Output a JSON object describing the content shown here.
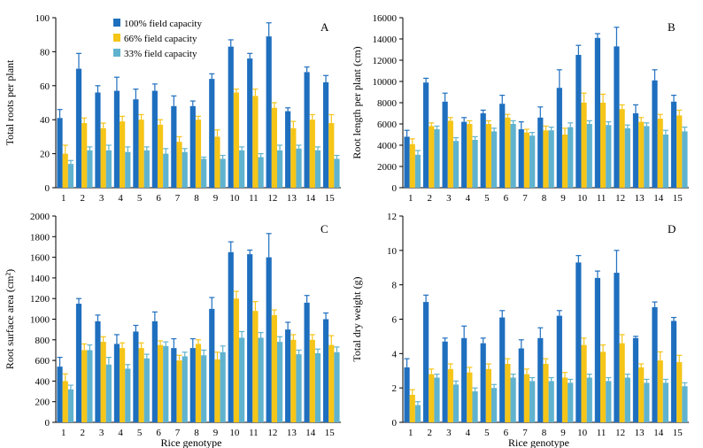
{
  "legend": {
    "placement": "top-left inside panel A",
    "entries": [
      {
        "label": "100% field capacity",
        "color": "#1f6fbf"
      },
      {
        "label": "66% field capacity",
        "color": "#f5c518"
      },
      {
        "label": "33% field capacity",
        "color": "#5fb3cf"
      }
    ]
  },
  "chart_data": [
    {
      "type": "bar",
      "panel_label": "A",
      "ylabel": "Total roots per plant",
      "xlabel": "",
      "categories": [
        "1",
        "2",
        "3",
        "4",
        "5",
        "6",
        "7",
        "8",
        "9",
        "10",
        "11",
        "12",
        "13",
        "14",
        "15"
      ],
      "ylim": [
        0,
        100
      ],
      "yticks": [
        0,
        20,
        40,
        60,
        80,
        100
      ],
      "series": [
        {
          "name": "100% field capacity",
          "color": "#1f6fbf",
          "values": [
            41,
            70,
            56,
            57,
            52,
            57,
            48,
            48,
            64,
            83,
            76,
            89,
            45,
            68,
            62
          ],
          "errors": [
            5,
            9,
            4,
            8,
            6,
            4,
            6,
            3,
            3,
            4,
            3,
            8,
            2,
            3,
            4
          ]
        },
        {
          "name": "66% field capacity",
          "color": "#f5c518",
          "values": [
            20,
            38,
            35,
            39,
            40,
            37,
            27,
            40,
            30,
            56,
            54,
            47,
            35,
            40,
            38
          ],
          "errors": [
            5,
            3,
            3,
            3,
            3,
            3,
            3,
            2,
            4,
            2,
            4,
            3,
            4,
            3,
            5
          ]
        },
        {
          "name": "33% field capacity",
          "color": "#5fb3cf",
          "values": [
            14,
            22,
            22,
            21,
            22,
            20,
            21,
            17,
            17,
            22,
            18,
            22,
            23,
            22,
            17
          ],
          "errors": [
            2,
            2,
            3,
            3,
            2,
            3,
            2,
            1,
            2,
            2,
            2,
            3,
            2,
            2,
            2
          ]
        }
      ]
    },
    {
      "type": "bar",
      "panel_label": "B",
      "ylabel": "Root length per plant (cm)",
      "xlabel": "",
      "categories": [
        "1",
        "2",
        "3",
        "4",
        "5",
        "6",
        "7",
        "8",
        "9",
        "10",
        "11",
        "12",
        "13",
        "14",
        "15"
      ],
      "ylim": [
        0,
        16000
      ],
      "yticks": [
        0,
        2000,
        4000,
        6000,
        8000,
        10000,
        12000,
        14000,
        16000
      ],
      "series": [
        {
          "name": "100% field capacity",
          "color": "#1f6fbf",
          "values": [
            4800,
            9900,
            8100,
            6200,
            7000,
            7900,
            5500,
            6600,
            9400,
            12500,
            14100,
            13300,
            7000,
            10100,
            8100
          ],
          "errors": [
            600,
            400,
            800,
            400,
            300,
            800,
            700,
            1000,
            1700,
            900,
            400,
            1800,
            800,
            1000,
            600
          ]
        },
        {
          "name": "66% field capacity",
          "color": "#f5c518",
          "values": [
            4100,
            5800,
            6300,
            6000,
            6000,
            6600,
            5200,
            5400,
            5000,
            8000,
            8000,
            7400,
            6200,
            6500,
            6800
          ],
          "errors": [
            500,
            300,
            300,
            300,
            300,
            300,
            300,
            400,
            600,
            900,
            800,
            400,
            400,
            400,
            500
          ]
        },
        {
          "name": "33% field capacity",
          "color": "#5fb3cf",
          "values": [
            3100,
            5500,
            4400,
            4500,
            5300,
            6000,
            4900,
            5400,
            5700,
            6000,
            5900,
            5600,
            5800,
            5000,
            5300
          ],
          "errors": [
            400,
            300,
            300,
            300,
            300,
            300,
            300,
            300,
            400,
            300,
            300,
            300,
            300,
            400,
            400
          ]
        }
      ]
    },
    {
      "type": "bar",
      "panel_label": "C",
      "ylabel": "Root surface area (cm²)",
      "xlabel": "Rice genotype",
      "categories": [
        "1",
        "2",
        "3",
        "4",
        "5",
        "6",
        "7",
        "8",
        "9",
        "10",
        "11",
        "12",
        "13",
        "14",
        "15"
      ],
      "ylim": [
        0,
        2000
      ],
      "yticks": [
        0,
        200,
        400,
        600,
        800,
        1000,
        1200,
        1400,
        1600,
        1800,
        2000
      ],
      "series": [
        {
          "name": "100% field capacity",
          "color": "#1f6fbf",
          "values": [
            540,
            1150,
            980,
            760,
            880,
            980,
            720,
            720,
            1100,
            1650,
            1630,
            1600,
            900,
            1160,
            1000
          ],
          "errors": [
            90,
            50,
            60,
            90,
            60,
            90,
            90,
            90,
            110,
            100,
            40,
            230,
            70,
            70,
            60
          ]
        },
        {
          "name": "66% field capacity",
          "color": "#f5c518",
          "values": [
            400,
            700,
            780,
            720,
            720,
            750,
            600,
            760,
            610,
            1200,
            1080,
            1040,
            800,
            800,
            750
          ],
          "errors": [
            70,
            60,
            50,
            50,
            50,
            40,
            50,
            40,
            70,
            70,
            90,
            50,
            50,
            50,
            90
          ]
        },
        {
          "name": "33% field capacity",
          "color": "#5fb3cf",
          "values": [
            320,
            700,
            560,
            520,
            620,
            740,
            640,
            650,
            680,
            820,
            820,
            780,
            660,
            670,
            680
          ],
          "errors": [
            40,
            50,
            70,
            40,
            40,
            40,
            40,
            50,
            60,
            60,
            50,
            50,
            40,
            40,
            50
          ]
        }
      ]
    },
    {
      "type": "bar",
      "panel_label": "D",
      "ylabel": "Total dry weight (g)",
      "xlabel": "Rice genotype",
      "categories": [
        "1",
        "2",
        "3",
        "4",
        "5",
        "6",
        "7",
        "8",
        "9",
        "10",
        "11",
        "12",
        "13",
        "14",
        "15"
      ],
      "ylim": [
        0,
        12
      ],
      "yticks": [
        0,
        2,
        4,
        6,
        8,
        10,
        12
      ],
      "series": [
        {
          "name": "100% field capacity",
          "color": "#1f6fbf",
          "values": [
            3.2,
            7.0,
            4.7,
            4.9,
            4.6,
            6.1,
            4.3,
            4.9,
            6.2,
            9.3,
            8.4,
            8.7,
            4.9,
            6.7,
            5.9
          ],
          "errors": [
            0.5,
            0.4,
            0.2,
            0.7,
            0.3,
            0.4,
            0.5,
            0.6,
            0.3,
            0.4,
            0.4,
            1.3,
            0.1,
            0.3,
            0.2
          ]
        },
        {
          "name": "66% field capacity",
          "color": "#f5c518",
          "values": [
            1.6,
            2.8,
            3.1,
            2.9,
            3.1,
            3.4,
            2.8,
            3.4,
            2.6,
            4.5,
            4.1,
            4.6,
            3.2,
            3.6,
            3.5
          ],
          "errors": [
            0.3,
            0.3,
            0.3,
            0.3,
            0.3,
            0.3,
            0.3,
            0.3,
            0.3,
            0.4,
            0.4,
            0.5,
            0.2,
            0.5,
            0.4
          ]
        },
        {
          "name": "33% field capacity",
          "color": "#5fb3cf",
          "values": [
            1.0,
            2.6,
            2.2,
            1.8,
            2.0,
            2.6,
            2.4,
            2.4,
            2.3,
            2.6,
            2.4,
            2.6,
            2.3,
            2.3,
            2.1
          ],
          "errors": [
            0.2,
            0.2,
            0.2,
            0.2,
            0.2,
            0.2,
            0.2,
            0.2,
            0.2,
            0.2,
            0.2,
            0.2,
            0.2,
            0.2,
            0.2
          ]
        }
      ]
    }
  ]
}
